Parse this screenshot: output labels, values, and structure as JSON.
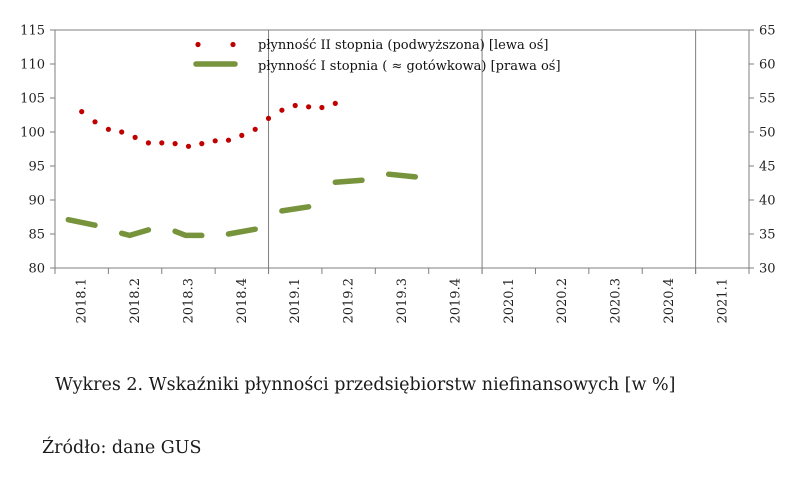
{
  "chart_data": {
    "type": "line",
    "categories": [
      "2018.1",
      "2018.2",
      "2018.3",
      "2018.4",
      "2019.1",
      "2019.2",
      "2019.3",
      "2019.4",
      "2020.1",
      "2020.2",
      "2020.3",
      "2020.4",
      "2021.1"
    ],
    "y_left": {
      "range": [
        80,
        115
      ],
      "ticks": [
        80,
        85,
        90,
        95,
        100,
        105,
        110,
        115
      ]
    },
    "y_right": {
      "range": [
        30,
        65
      ],
      "ticks": [
        30,
        35,
        40,
        45,
        50,
        55,
        60,
        65
      ]
    },
    "grid": false,
    "legend_placement": "top-center",
    "series": [
      {
        "name": "płynność II stopnia (podwyższona) [lewa  oś]",
        "axis": "left",
        "style": "dotted",
        "color": "#c00000",
        "points": [
          {
            "x": 1.0,
            "y": 103.0
          },
          {
            "x": 1.5,
            "y": 101.5
          },
          {
            "x": 2.0,
            "y": 100.4
          },
          {
            "x": 2.5,
            "y": 100.0
          },
          {
            "x": 3.0,
            "y": 99.2
          },
          {
            "x": 3.5,
            "y": 98.4
          },
          {
            "x": 4.0,
            "y": 98.4
          },
          {
            "x": 4.5,
            "y": 98.3
          },
          {
            "x": 5.0,
            "y": 97.9
          },
          {
            "x": 5.5,
            "y": 98.3
          },
          {
            "x": 6.0,
            "y": 98.7
          },
          {
            "x": 6.5,
            "y": 98.8
          },
          {
            "x": 7.0,
            "y": 99.5
          },
          {
            "x": 7.5,
            "y": 100.4
          },
          {
            "x": 8.0,
            "y": 102.0
          },
          {
            "x": 8.5,
            "y": 103.2
          },
          {
            "x": 9.0,
            "y": 103.9
          },
          {
            "x": 9.5,
            "y": 103.7
          },
          {
            "x": 10.0,
            "y": 103.6
          },
          {
            "x": 10.5,
            "y": 104.2
          }
        ]
      },
      {
        "name": "płynność I stopnia ( ≈ gotówkowa) [prawa  oś]",
        "axis": "right",
        "style": "dashed",
        "color": "#77933c",
        "segments": [
          [
            {
              "x": 0.5,
              "y": 37.1
            },
            {
              "x": 1.5,
              "y": 36.3
            }
          ],
          [
            {
              "x": 2.5,
              "y": 35.1
            },
            {
              "x": 2.8,
              "y": 34.8
            },
            {
              "x": 3.5,
              "y": 35.6
            }
          ],
          [
            {
              "x": 4.5,
              "y": 35.4
            },
            {
              "x": 4.9,
              "y": 34.8
            },
            {
              "x": 5.5,
              "y": 34.8
            }
          ],
          [
            {
              "x": 6.5,
              "y": 35.0
            },
            {
              "x": 7.5,
              "y": 35.7
            }
          ],
          [
            {
              "x": 8.5,
              "y": 38.4
            },
            {
              "x": 9.5,
              "y": 39.0
            }
          ],
          [
            {
              "x": 10.5,
              "y": 42.6
            },
            {
              "x": 11.5,
              "y": 42.9
            }
          ],
          [
            {
              "x": 12.5,
              "y": 43.8
            },
            {
              "x": 13.5,
              "y": 43.4
            }
          ]
        ]
      }
    ],
    "caption": "Wykres 2. Wskaźniki płynności przedsiębiorstw niefinansowych [w %]",
    "source": "Źródło: dane GUS"
  }
}
